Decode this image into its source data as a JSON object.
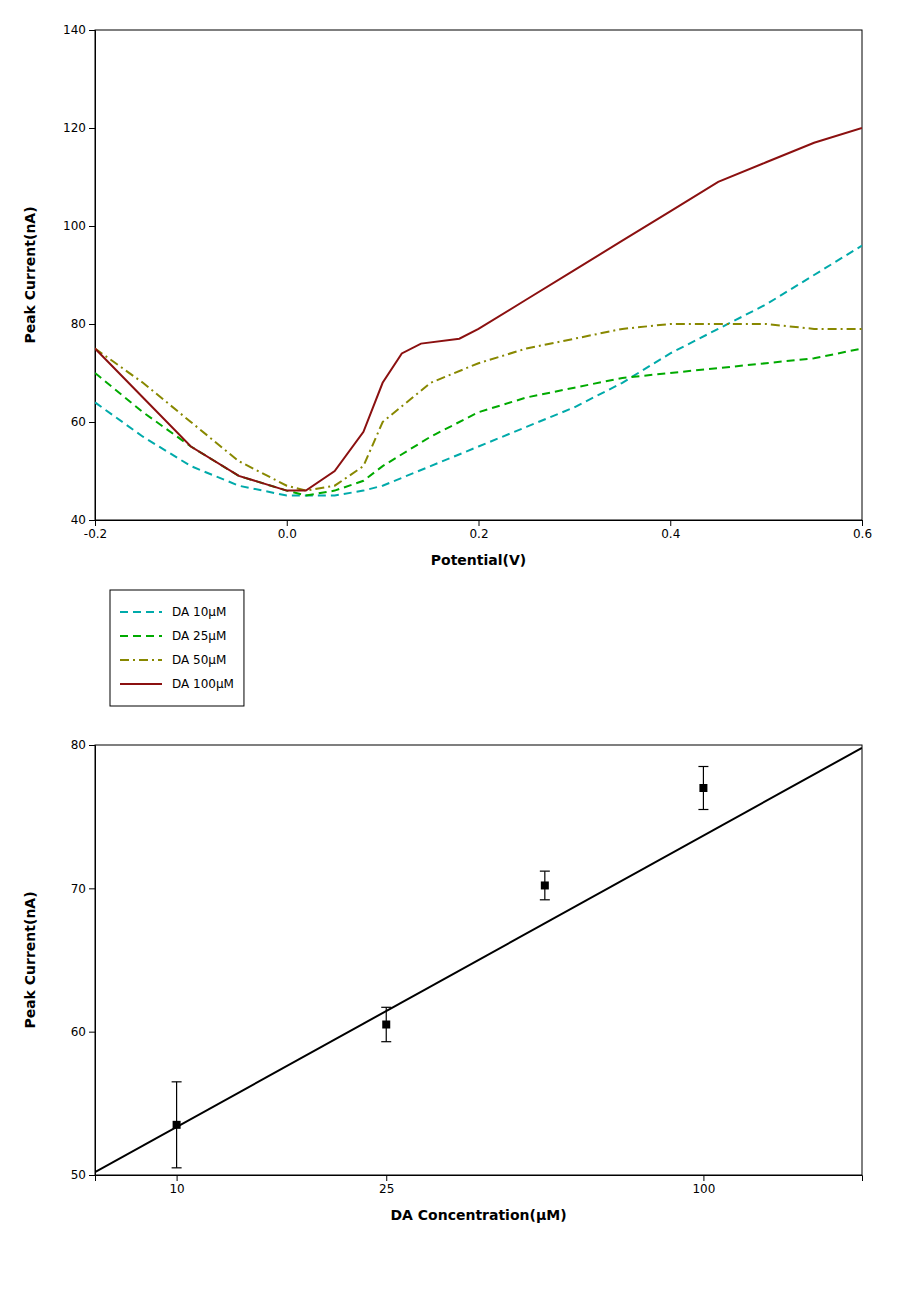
{
  "chart_data": [
    {
      "type": "line",
      "xlabel": "Potential(V)",
      "ylabel": "Peak Current(nA)",
      "xlim": [
        -0.2,
        0.6
      ],
      "ylim": [
        40,
        140
      ],
      "xticks": [
        -0.2,
        {
          "value": 0.0,
          "label": "0.0"
        },
        0.2,
        0.4,
        0.6
      ],
      "yticks": [
        40,
        60,
        80,
        100,
        120,
        140
      ],
      "grid": false,
      "legend": "bottom",
      "series": [
        {
          "name": "DA 10μM",
          "color": "#00AAAA",
          "line_style": "dashed",
          "x": [
            -0.2,
            -0.15,
            -0.1,
            -0.05,
            0.0,
            0.02,
            0.05,
            0.08,
            0.1,
            0.15,
            0.2,
            0.25,
            0.3,
            0.35,
            0.4,
            0.45,
            0.5,
            0.55,
            0.6
          ],
          "values": [
            64,
            57,
            51,
            47,
            45,
            45,
            45,
            46,
            47,
            51,
            55,
            59,
            63,
            68,
            74,
            79,
            84,
            90,
            96
          ]
        },
        {
          "name": "DA 25μM",
          "color": "#00AA00",
          "line_style": "dashed",
          "x": [
            -0.2,
            -0.15,
            -0.1,
            -0.05,
            0.0,
            0.02,
            0.05,
            0.08,
            0.1,
            0.15,
            0.2,
            0.25,
            0.3,
            0.35,
            0.4,
            0.45,
            0.5,
            0.55,
            0.6
          ],
          "values": [
            70,
            62,
            55,
            49,
            46,
            45,
            46,
            48,
            51,
            57,
            62,
            65,
            67,
            69,
            70,
            71,
            72,
            73,
            75
          ]
        },
        {
          "name": "DA 50μM",
          "color": "#888800",
          "line_style": "dashdot",
          "x": [
            -0.2,
            -0.15,
            -0.1,
            -0.05,
            0.0,
            0.02,
            0.05,
            0.08,
            0.1,
            0.15,
            0.2,
            0.25,
            0.3,
            0.35,
            0.4,
            0.45,
            0.5,
            0.55,
            0.6
          ],
          "values": [
            75,
            68,
            60,
            52,
            47,
            46,
            47,
            51,
            60,
            68,
            72,
            75,
            77,
            79,
            80,
            80,
            80,
            79,
            79
          ]
        },
        {
          "name": "DA 100μM",
          "color": "#8B1010",
          "line_style": "solid",
          "x": [
            -0.2,
            -0.15,
            -0.1,
            -0.05,
            0.0,
            0.02,
            0.05,
            0.08,
            0.1,
            0.12,
            0.14,
            0.18,
            0.2,
            0.25,
            0.3,
            0.35,
            0.4,
            0.45,
            0.5,
            0.55,
            0.6
          ],
          "values": [
            75,
            65,
            55,
            49,
            46,
            46,
            50,
            58,
            68,
            74,
            76,
            77,
            79,
            85,
            91,
            97,
            103,
            109,
            113,
            117,
            120
          ]
        }
      ]
    },
    {
      "type": "scatter",
      "xlabel": "DA Concentration(μM)",
      "ylabel": "Peak Current(nA)",
      "log": "x",
      "xlim": [
        7,
        200
      ],
      "ylim": [
        50,
        80
      ],
      "xticks": [
        10,
        25,
        100
      ],
      "yticks": [
        50,
        60,
        70,
        80
      ],
      "grid": false,
      "series": [
        {
          "type": "line",
          "color": "black",
          "line_style": "solid",
          "x": [
            7,
            200
          ],
          "values": [
            50.2,
            79.8
          ]
        },
        {
          "type": "scatter",
          "color": "black",
          "marker": "square",
          "x": [
            10,
            25,
            50,
            100
          ],
          "values": [
            53.5,
            60.5,
            70.2,
            77.0
          ],
          "errors": [
            3.0,
            1.2,
            1.0,
            1.5
          ]
        }
      ]
    }
  ]
}
